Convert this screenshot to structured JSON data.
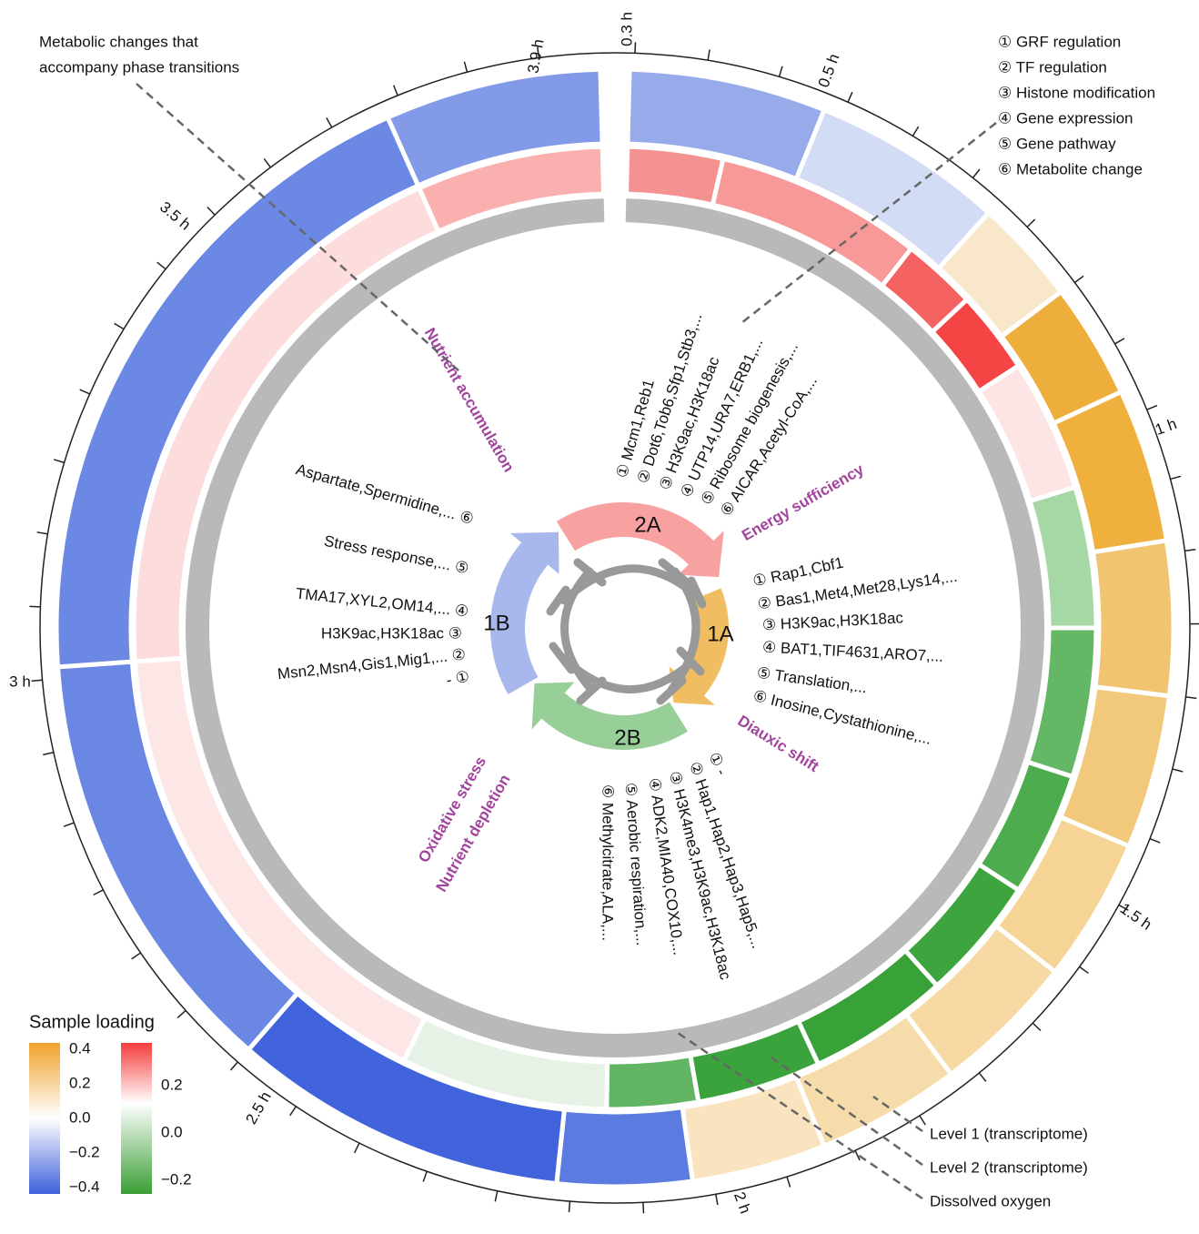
{
  "annotation": [
    "Metabolic changes that",
    "accompany phase transitions"
  ],
  "key": [
    "① GRF regulation",
    "② TF regulation",
    "③ Histone modification",
    "④ Gene expression",
    "⑤ Gene pathway",
    "⑥ Metabolite change"
  ],
  "time_labels": [
    "0.3 h",
    "0.5 h",
    "1 h",
    "1.5 h",
    "2 h",
    "2.5 h",
    "3 h",
    "3.5 h",
    "3.9 h"
  ],
  "modules": [
    {
      "label": "2A",
      "items": [
        "① Mcm1,Reb1",
        "② Dot6,Tob6,Sfp1,Stb3,...",
        "③ H3K9ac,H3K18ac",
        "④ UTP14,URA7,ERB1,...",
        "⑤ Ribosome biogenesis,...",
        "⑥ AICAR,Acetyl-CoA,..."
      ]
    },
    {
      "label": "1A",
      "items": [
        "① Rap1,Cbf1",
        "② Bas1,Met4,Met28,Lys14,...",
        "③ H3K9ac,H3K18ac",
        "④ BAT1,TIF4631,ARO7,...",
        "⑤ Translation,...",
        "⑥ Inosine,Cystathionine,..."
      ]
    },
    {
      "label": "2B",
      "items": [
        "① -",
        "② Hap1,Hap2,Hap3,Hap5,...",
        "③ H3K4me3,H3K9ac,H3K18ac",
        "④ ADK2,MIA40,COX10,...",
        "⑤ Aerobic respiration,...",
        "⑥ Methylcitrate,ALA,..."
      ]
    },
    {
      "label": "1B",
      "items": [
        "Aspartate,Spermidine,... ⑥",
        "Stress response,... ⑤",
        "TMA17,XYL2,OM14,... ④",
        "H3K9ac,H3K18ac ③",
        "Msn2,Msn4,Gis1,Mig1,... ②",
        "- ①"
      ]
    }
  ],
  "phase_labels": [
    "Nutrient accumulation",
    "Energy sufficiency",
    "Diauxic shift",
    "Oxidative stress",
    "Nutrient depletion"
  ],
  "ring_labels": [
    "Level 1 (transcriptome)",
    "Level 2 (transcriptome)",
    "Dissolved oxygen"
  ],
  "legend": {
    "title": "Sample loading",
    "scale1": [
      "0.4",
      "0.2",
      "0.0",
      "−0.2",
      "−0.4"
    ],
    "scale2": [
      "0.2",
      "0.0",
      "−0.2"
    ]
  }
}
